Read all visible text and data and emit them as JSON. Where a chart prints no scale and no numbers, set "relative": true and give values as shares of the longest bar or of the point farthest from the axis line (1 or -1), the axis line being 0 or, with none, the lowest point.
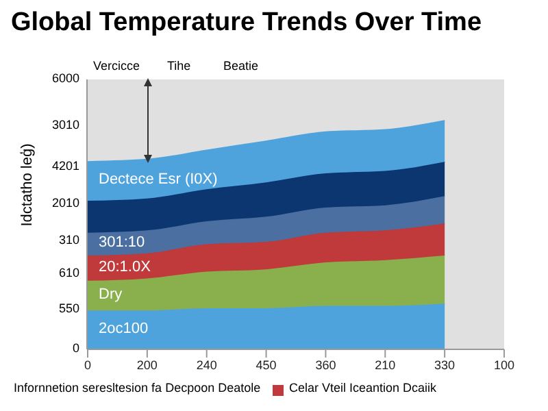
{
  "chart_data": {
    "type": "area",
    "stacked": true,
    "relative": true,
    "title": "Global Temperature Trends Over Time",
    "ylabel": "Idctatho leģ)",
    "annotations": [
      "Vercicce",
      "Tihe",
      "Beatie",
      "Infornnetion seresltesion fa Decpoon Deatole",
      "Celar Vteil Iceantion Dcaiik",
      "6000",
      "3010",
      "4201",
      "2010",
      "310",
      "610",
      "550",
      "0"
    ],
    "categories": [
      "0",
      "200",
      "240",
      "450",
      "360",
      "210",
      "330",
      "100"
    ],
    "series": [
      {
        "name": "2oc100",
        "color": "#4fa3dd",
        "values": [
          0.17,
          0.17,
          0.18,
          0.18,
          0.19,
          0.19,
          0.2,
          null
        ]
      },
      {
        "name": "Dry",
        "color": "#8ab04e",
        "values": [
          0.13,
          0.14,
          0.16,
          0.17,
          0.19,
          0.2,
          0.21,
          null
        ]
      },
      {
        "name": "20:1.0X",
        "color": "#c0393b",
        "values": [
          0.11,
          0.11,
          0.12,
          0.12,
          0.13,
          0.13,
          0.14,
          null
        ]
      },
      {
        "name": "301:10",
        "color": "#4a6fa0",
        "values": [
          0.1,
          0.1,
          0.1,
          0.11,
          0.11,
          0.11,
          0.12,
          null
        ]
      },
      {
        "color": "#0b3670",
        "values": [
          0.14,
          0.14,
          0.14,
          0.15,
          0.15,
          0.15,
          0.15,
          null
        ]
      },
      {
        "name": "Dectece Esr (I0X)",
        "color": "#4fa3dd",
        "values": [
          0.17,
          0.17,
          0.17,
          0.18,
          0.18,
          0.18,
          0.18,
          null
        ]
      }
    ]
  }
}
